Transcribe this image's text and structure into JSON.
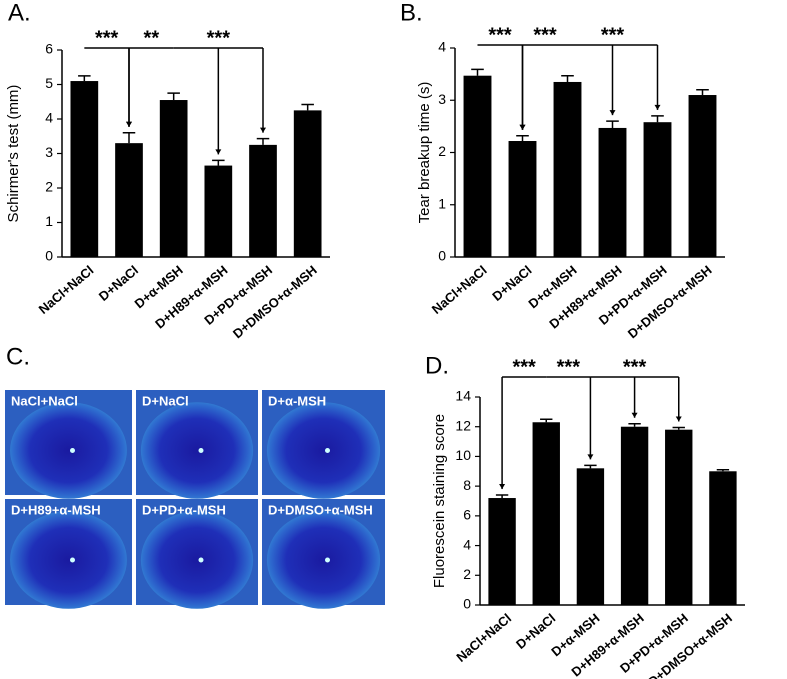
{
  "chart_data": [
    {
      "type": "bar",
      "title": "A.",
      "ylabel": "Schirmer's test (mm)",
      "categories": [
        "NaCl+NaCl",
        "D+NaCl",
        "D+α-MSH",
        "D+H89+α-MSH",
        "D+PD+α-MSH",
        "D+DMSO+α-MSH"
      ],
      "values": [
        5.1,
        3.3,
        4.55,
        2.65,
        3.25,
        4.25
      ],
      "errors": [
        0.15,
        0.3,
        0.2,
        0.15,
        0.18,
        0.17
      ],
      "color": "#000000",
      "ylim": [
        0,
        6
      ],
      "yticks": [
        0,
        1,
        2,
        3,
        4,
        5,
        6
      ],
      "annotations": [
        "***",
        "**",
        "***"
      ]
    },
    {
      "type": "bar",
      "title": "B.",
      "ylabel": "Tear breakup time (s)",
      "categories": [
        "NaCl+NaCl",
        "D+NaCl",
        "D+α-MSH",
        "D+H89+α-MSH",
        "D+PD+α-MSH",
        "D+DMSO+α-MSH"
      ],
      "values": [
        3.47,
        2.22,
        3.35,
        2.47,
        2.58,
        3.1
      ],
      "errors": [
        0.12,
        0.1,
        0.12,
        0.13,
        0.12,
        0.1
      ],
      "color": "#000000",
      "ylim": [
        0,
        4
      ],
      "yticks": [
        0,
        1,
        2,
        3,
        4
      ],
      "annotations": [
        "***",
        "***",
        "***"
      ]
    },
    {
      "type": "bar",
      "title": "D.",
      "ylabel": "Fluorescein  staining score",
      "categories": [
        "NaCl+NaCl",
        "D+NaCl",
        "D+α-MSH",
        "D+H89+α-MSH",
        "D+PD+α-MSH",
        "D+DMSO+α-MSH"
      ],
      "values": [
        7.2,
        12.3,
        9.2,
        12.0,
        11.8,
        9.0
      ],
      "errors": [
        0.2,
        0.2,
        0.2,
        0.2,
        0.15,
        0.1
      ],
      "color": "#000000",
      "ylim": [
        0,
        14
      ],
      "yticks": [
        0,
        2,
        4,
        6,
        8,
        10,
        12,
        14
      ],
      "annotations": [
        "***",
        "***",
        "***"
      ]
    }
  ],
  "panel_c": {
    "title": "C.",
    "images": [
      "NaCl+NaCl",
      "D+NaCl",
      "D+α-MSH",
      "D+H89+α-MSH",
      "D+PD+α-MSH",
      "D+DMSO+α-MSH"
    ]
  }
}
